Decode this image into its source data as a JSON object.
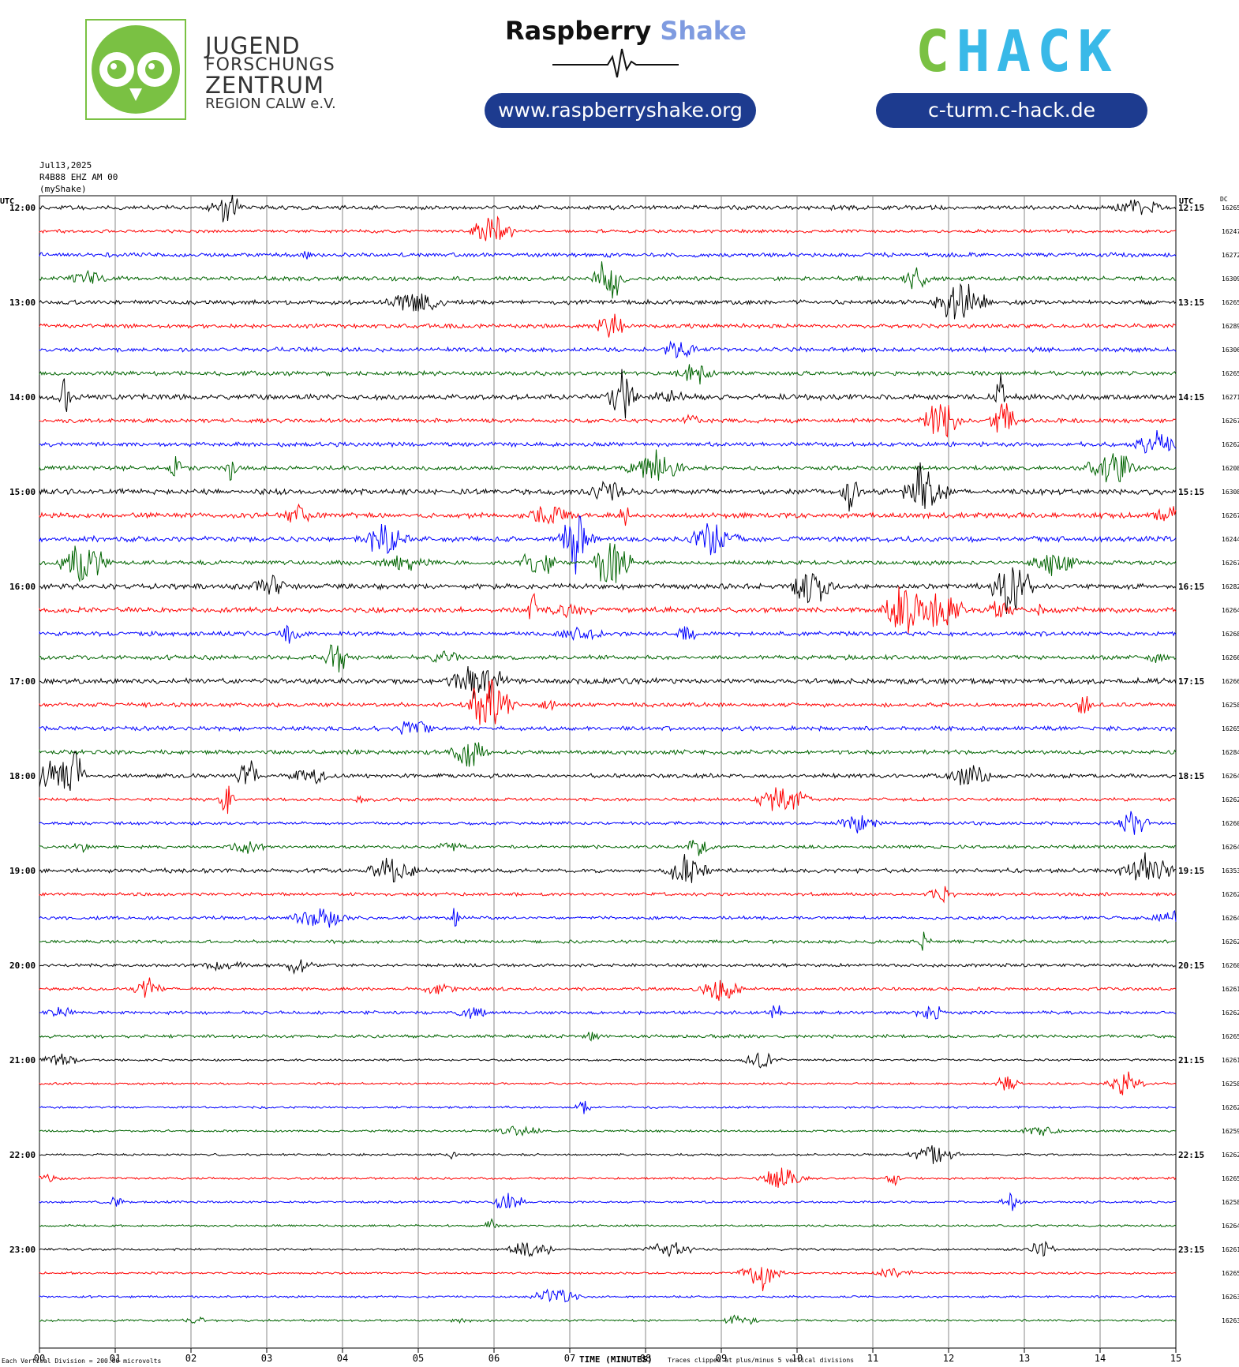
{
  "header": {
    "jfz_lines": [
      "JUGEND",
      "FORSCHUNGS",
      "ZENTRUM"
    ],
    "jfz_region": "REGION CALW e.V.",
    "rs_title_part1": "Raspberry",
    "rs_title_part2": "Shake",
    "rs_url": "www.raspberryshake.org",
    "chack_logo": "CHACK",
    "chack_url": "c-turm.c-hack.de",
    "colors": {
      "pill": "#1d3b8f",
      "owl_green": "#7ac143",
      "shake_blue": "#7f9be0",
      "chack_green": "#7ac143",
      "chack_cyan": "#39b9e8"
    }
  },
  "station": {
    "date": "Jul13,2025",
    "channel": "R4B88 EHZ AM 00",
    "source": "(myShake)"
  },
  "chart_data": {
    "type": "helicorder",
    "left_axis_label": "UTC",
    "right_axis_label": "UTC",
    "dc_label": "DC",
    "x_ticks": [
      "00",
      "01",
      "02",
      "03",
      "04",
      "05",
      "06",
      "07",
      "08",
      "09",
      "10",
      "11",
      "12",
      "13",
      "14",
      "15"
    ],
    "x_range_minutes": [
      0,
      15
    ],
    "xlabel": "TIME (MINUTES)",
    "left_hour_labels": [
      "12:00",
      "13:00",
      "14:00",
      "15:00",
      "16:00",
      "17:00",
      "18:00",
      "19:00",
      "20:00",
      "21:00",
      "22:00",
      "23:00"
    ],
    "right_hour_labels": [
      "12:15",
      "13:15",
      "14:15",
      "15:15",
      "16:15",
      "17:15",
      "18:15",
      "19:15",
      "20:15",
      "21:15",
      "22:15",
      "23:15"
    ],
    "trace_colors": [
      "#000000",
      "#ff0000",
      "#0000ff",
      "#006400"
    ],
    "dc_offsets": [
      16265,
      16247,
      16272,
      16309,
      16265,
      16289,
      16306,
      16265,
      16271,
      16267,
      16262,
      16208,
      16308,
      16267,
      16244,
      16267,
      16282,
      16264,
      16268,
      16266,
      16266,
      16258,
      16265,
      16284,
      16264,
      16262,
      16260,
      16264,
      16353,
      16262,
      16264,
      16262,
      16260,
      16261,
      16262,
      16265,
      16261,
      16258,
      16262,
      16259,
      16262,
      16265,
      16258,
      16264,
      16261,
      16265,
      16263,
      16263
    ],
    "activity_level": [
      3,
      2,
      3,
      3,
      3,
      3,
      3,
      3,
      4,
      3,
      3,
      3,
      4,
      4,
      4,
      3,
      4,
      4,
      3,
      3,
      4,
      3,
      3,
      3,
      3,
      2,
      2,
      2,
      3,
      2,
      2,
      2,
      2,
      2,
      2,
      2,
      1,
      1,
      1,
      1,
      1,
      1,
      1,
      1,
      1,
      1,
      1,
      1
    ],
    "footer_scale": "Each Vertical Division =  200.00 microvolts",
    "footer_clip": "Traces clipped at plus/minus 5 vertical divisions"
  }
}
